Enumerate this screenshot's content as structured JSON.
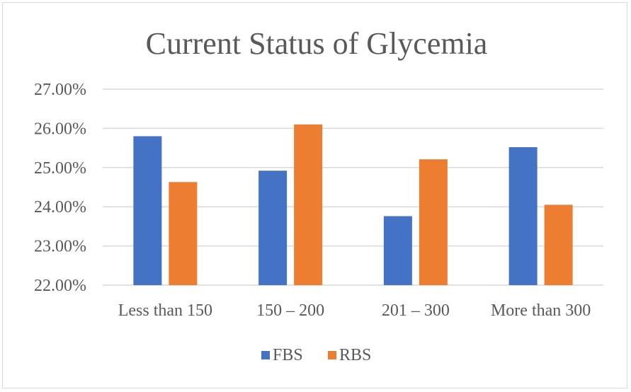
{
  "chart_data": {
    "type": "bar",
    "title": "Current Status of Glycemia",
    "xlabel": "",
    "ylabel": "",
    "categories": [
      "Less than 150",
      "150 – 200",
      "201 – 300",
      "More than 300"
    ],
    "series": [
      {
        "name": "FBS",
        "values": [
          25.8,
          24.92,
          23.76,
          25.52
        ],
        "color": "#4472C4"
      },
      {
        "name": "RBS",
        "values": [
          24.63,
          26.1,
          25.21,
          24.05
        ],
        "color": "#ED7D31"
      }
    ],
    "ylim": [
      22,
      27
    ],
    "yticks": [
      22,
      23,
      24,
      25,
      26,
      27
    ],
    "ytick_labels": [
      "22.00%",
      "23.00%",
      "24.00%",
      "25.00%",
      "26.00%",
      "27.00%"
    ],
    "grid": true,
    "legend_position": "bottom"
  }
}
